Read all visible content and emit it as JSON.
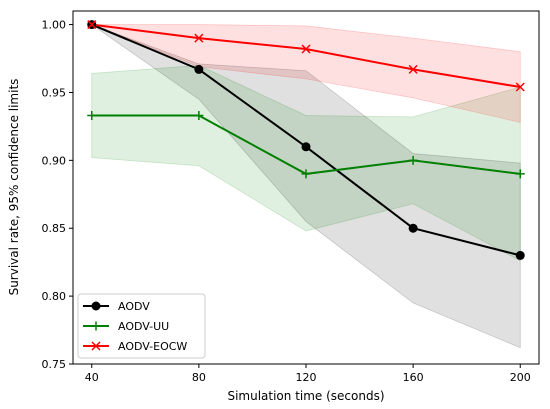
{
  "chart_data": {
    "type": "line",
    "xlabel": "Simulation time (seconds)",
    "ylabel": "Survival rate, 95% confidence limits",
    "x": [
      40,
      80,
      120,
      160,
      200
    ],
    "xlim": [
      33,
      207
    ],
    "ylim": [
      0.75,
      1.01
    ],
    "xticks": [
      "40",
      "80",
      "120",
      "160",
      "200"
    ],
    "yticks": [
      "0.75",
      "0.80",
      "0.85",
      "0.90",
      "0.95",
      "1.00"
    ],
    "grid": false,
    "legend_position": "lower-left",
    "series": [
      {
        "name": "AODV",
        "color": "#000000",
        "marker": "circle",
        "values": [
          1.0,
          0.967,
          0.91,
          0.85,
          0.83
        ],
        "lower": [
          1.0,
          0.945,
          0.855,
          0.795,
          0.762
        ],
        "upper": [
          1.0,
          0.971,
          0.966,
          0.905,
          0.898
        ]
      },
      {
        "name": "AODV-UU",
        "color": "#008000",
        "marker": "plus",
        "values": [
          0.933,
          0.933,
          0.89,
          0.9,
          0.89
        ],
        "lower": [
          0.902,
          0.896,
          0.848,
          0.868,
          0.826
        ],
        "upper": [
          0.964,
          0.97,
          0.933,
          0.932,
          0.954
        ]
      },
      {
        "name": "AODV-EOCW",
        "color": "#ff0000",
        "marker": "x",
        "values": [
          1.0,
          0.99,
          0.982,
          0.967,
          0.954
        ],
        "lower": [
          1.0,
          0.969,
          0.96,
          0.946,
          0.928
        ],
        "upper": [
          1.0,
          1.0,
          0.999,
          0.99,
          0.98
        ]
      }
    ]
  }
}
